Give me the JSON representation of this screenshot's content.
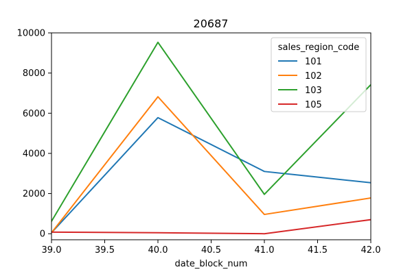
{
  "chart_data": {
    "type": "line",
    "title": "20687",
    "xlabel": "date_block_num",
    "ylabel": "",
    "x": [
      39,
      40,
      41,
      42
    ],
    "xlim": [
      39,
      42
    ],
    "ylim": [
      -300,
      10000
    ],
    "xticks": [
      "39.0",
      "39.5",
      "40.0",
      "40.5",
      "41.0",
      "41.5",
      "42.0"
    ],
    "yticks": [
      "0",
      "2000",
      "4000",
      "6000",
      "8000",
      "10000"
    ],
    "grid": false,
    "legend": {
      "title": "sales_region_code",
      "placement": "top-right"
    },
    "series": [
      {
        "name": "101",
        "color": "#1f77b4",
        "values": [
          50,
          5780,
          3100,
          2540
        ]
      },
      {
        "name": "102",
        "color": "#ff7f0e",
        "values": [
          50,
          6820,
          960,
          1780
        ]
      },
      {
        "name": "103",
        "color": "#2ca02c",
        "values": [
          620,
          9530,
          1960,
          7420
        ]
      },
      {
        "name": "105",
        "color": "#d62728",
        "values": [
          80,
          50,
          0,
          700
        ]
      }
    ]
  }
}
